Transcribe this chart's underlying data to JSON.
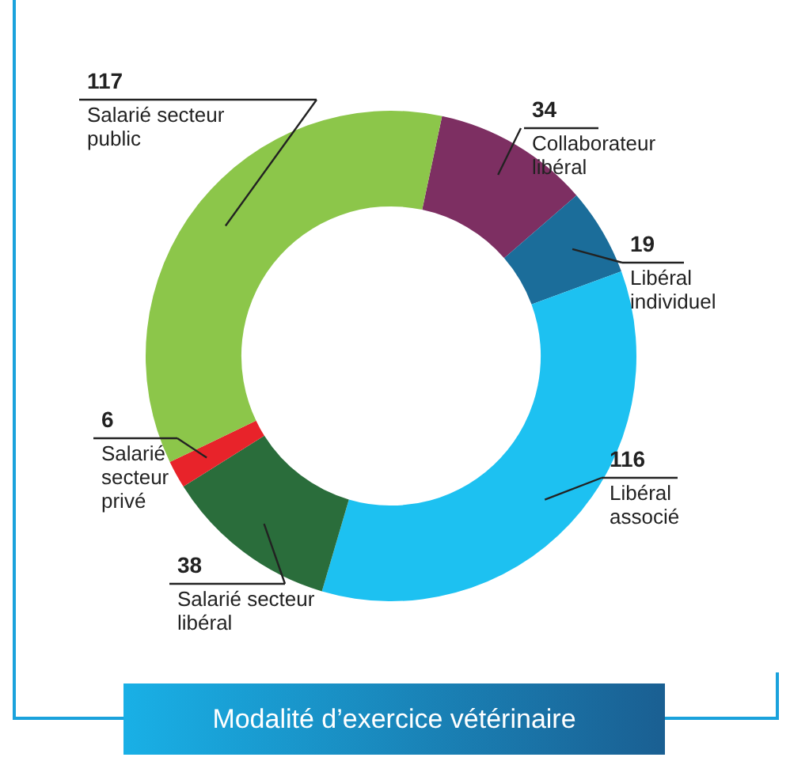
{
  "chart_data": {
    "type": "donut",
    "title": "Modalité d’exercice vétérinaire",
    "categories": [
      "Collaborateur libéral",
      "Libéral individuel",
      "Libéral associé",
      "Salarié secteur libéral",
      "Salarié secteur privé",
      "Salarié secteur public"
    ],
    "values": [
      34,
      19,
      116,
      38,
      6,
      117
    ],
    "colors": [
      "#7d2f62",
      "#1b6d9a",
      "#1dc1f1",
      "#2a6d3b",
      "#e8232a",
      "#8cc64a"
    ],
    "data_labels": true,
    "legend": false
  }
}
